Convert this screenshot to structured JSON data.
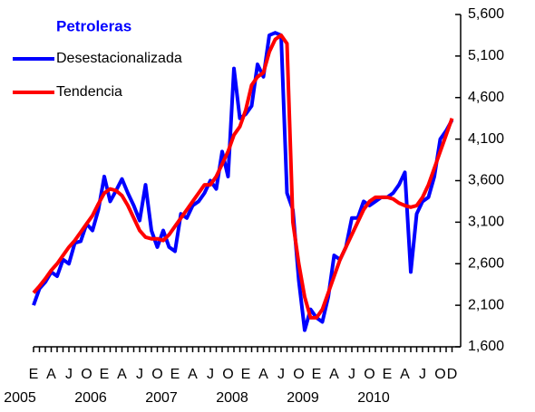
{
  "chart_data": {
    "type": "line",
    "legend_title": "Petroleras",
    "categories": [
      "E",
      null,
      null,
      "A",
      null,
      null,
      "J",
      null,
      null,
      "O",
      null,
      null,
      "E",
      null,
      null,
      "A",
      null,
      null,
      "J",
      null,
      null,
      "O",
      null,
      null,
      "E",
      null,
      null,
      "A",
      null,
      null,
      "J",
      null,
      null,
      "O",
      null,
      null,
      "E",
      null,
      null,
      "A",
      null,
      null,
      "J",
      null,
      null,
      "O",
      null,
      null,
      "E",
      null,
      null,
      "A",
      null,
      null,
      "J",
      null,
      null,
      "O",
      null,
      null,
      "E",
      null,
      null,
      "A",
      null,
      null,
      "J",
      null,
      null,
      "O",
      null,
      "D"
    ],
    "x_groups": [
      "2005",
      "2006",
      "2007",
      "2008",
      "2009",
      "2010"
    ],
    "series": [
      {
        "name": "Desestacionalizada",
        "color": "#0000ff",
        "values": [
          2100,
          2300,
          2380,
          2500,
          2450,
          2650,
          2600,
          2850,
          2870,
          3080,
          3000,
          3250,
          3650,
          3350,
          3480,
          3620,
          3450,
          3300,
          3120,
          3550,
          3000,
          2800,
          3000,
          2800,
          2750,
          3200,
          3150,
          3300,
          3350,
          3450,
          3600,
          3500,
          3950,
          3650,
          4950,
          4350,
          4400,
          4500,
          5000,
          4850,
          5350,
          5380,
          5350,
          3450,
          3250,
          2400,
          1800,
          2050,
          1950,
          1900,
          2200,
          2700,
          2650,
          2800,
          3150,
          3150,
          3350,
          3300,
          3350,
          3400,
          3400,
          3450,
          3550,
          3700,
          2500,
          3200,
          3350,
          3400,
          3650,
          4100,
          4200,
          4330
        ]
      },
      {
        "name": "Tendencia",
        "color": "#ff0000",
        "values": [
          2250,
          2330,
          2420,
          2520,
          2600,
          2700,
          2800,
          2880,
          2980,
          3080,
          3180,
          3320,
          3450,
          3500,
          3480,
          3420,
          3300,
          3150,
          3000,
          2920,
          2900,
          2900,
          2880,
          2950,
          3050,
          3150,
          3250,
          3350,
          3450,
          3550,
          3550,
          3650,
          3800,
          3950,
          4150,
          4250,
          4450,
          4750,
          4850,
          4900,
          5150,
          5300,
          5350,
          5250,
          3100,
          2600,
          2200,
          1950,
          1950,
          2050,
          2250,
          2450,
          2650,
          2800,
          2950,
          3100,
          3250,
          3350,
          3400,
          3400,
          3400,
          3380,
          3330,
          3300,
          3280,
          3300,
          3400,
          3550,
          3750,
          3950,
          4150,
          4350
        ]
      }
    ],
    "ylim": [
      1600,
      5600
    ],
    "yticks": [
      {
        "value": 1600,
        "label": "1,600"
      },
      {
        "value": 2100,
        "label": "2,100"
      },
      {
        "value": 2600,
        "label": "2,600"
      },
      {
        "value": 3100,
        "label": "3,100"
      },
      {
        "value": 3600,
        "label": "3,600"
      },
      {
        "value": 4100,
        "label": "4,100"
      },
      {
        "value": 4600,
        "label": "4,600"
      },
      {
        "value": 5100,
        "label": "5,100"
      },
      {
        "value": 5600,
        "label": "5,600"
      }
    ],
    "y_axis_side": "right",
    "grid": false,
    "legend": "upper left"
  }
}
